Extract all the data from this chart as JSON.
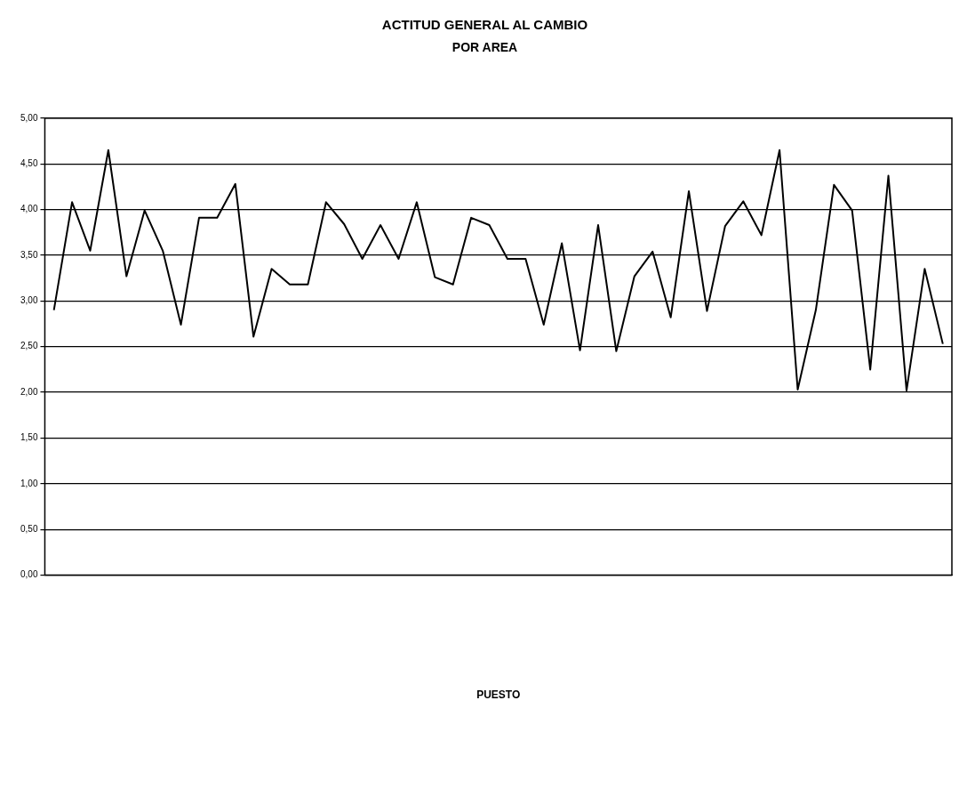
{
  "chart_data": {
    "type": "line",
    "title": "ACTITUD GENERAL AL CAMBIO",
    "subtitle": "POR AREA",
    "annotations": [
      "PUESTO"
    ],
    "categories": [
      null,
      null,
      null,
      null,
      null,
      null,
      null,
      null,
      null,
      null,
      null,
      null,
      null,
      null,
      null,
      null,
      null,
      null,
      null,
      null,
      null,
      null,
      null,
      null,
      null,
      null,
      null,
      null,
      null,
      null,
      null,
      null,
      null,
      null,
      null,
      null,
      null,
      null,
      null,
      null,
      null,
      null,
      null,
      null,
      null,
      null,
      null,
      null,
      null,
      null
    ],
    "series": [
      {
        "color": "#000000",
        "values": [
          2.9,
          4.08,
          3.55,
          4.65,
          3.27,
          3.99,
          3.55,
          2.74,
          3.91,
          3.91,
          4.28,
          2.61,
          3.35,
          3.18,
          3.18,
          4.08,
          3.84,
          3.46,
          3.83,
          3.46,
          4.08,
          3.26,
          3.18,
          3.91,
          3.83,
          3.46,
          3.46,
          2.74,
          3.63,
          2.46,
          3.83,
          2.45,
          3.27,
          3.54,
          2.82,
          4.2,
          2.89,
          3.82,
          4.09,
          3.72,
          4.65,
          2.03,
          2.9,
          4.27,
          3.99,
          2.25,
          4.37,
          2.02,
          3.35,
          2.53
        ]
      }
    ],
    "ylim": [
      0,
      5
    ],
    "yticks": [
      {
        "value": 0,
        "label": "0,00"
      },
      {
        "value": 0.5,
        "label": "0,50"
      },
      {
        "value": 1,
        "label": "1,00"
      },
      {
        "value": 1.5,
        "label": "1,50"
      },
      {
        "value": 2,
        "label": "2,00"
      },
      {
        "value": 2.5,
        "label": "2,50"
      },
      {
        "value": 3,
        "label": "3,00"
      },
      {
        "value": 3.5,
        "label": "3,50"
      },
      {
        "value": 4,
        "label": "4,00"
      },
      {
        "value": 4.5,
        "label": "4,50"
      },
      {
        "value": 5,
        "label": "5,00"
      }
    ],
    "grid": "y",
    "legend": false,
    "marker": "none",
    "line_style": "solid"
  }
}
